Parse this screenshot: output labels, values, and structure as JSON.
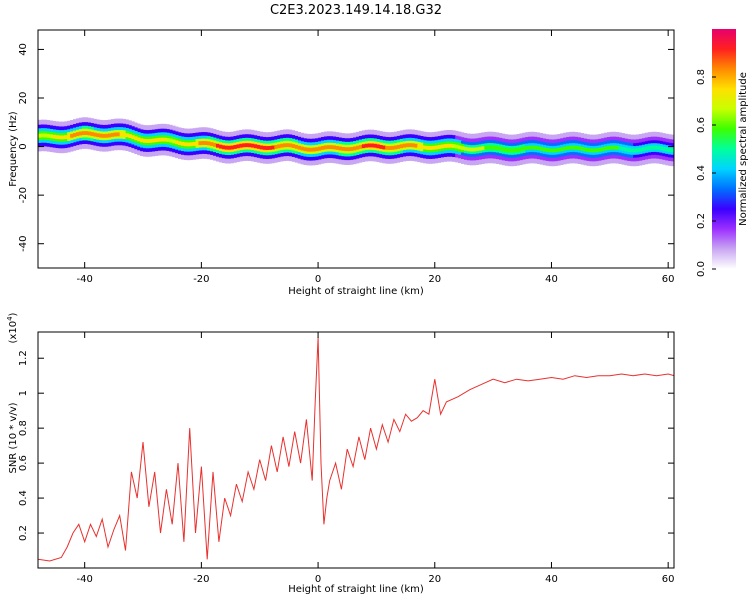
{
  "figure": {
    "title": "C2E3.2023.149.14.18.G32"
  },
  "chart_data": [
    {
      "type": "heatmap",
      "xlabel": "Height of straight line (km)",
      "ylabel": "Frequency (Hz)",
      "xlim": [
        -48,
        61
      ],
      "ylim": [
        -50,
        48
      ],
      "xticks": [
        -40,
        -20,
        0,
        20,
        40,
        60
      ],
      "yticks": [
        -40,
        -20,
        0,
        20,
        40
      ],
      "colorbar": {
        "label": "Normalized spectral amplitude",
        "range": [
          0.0,
          1.0
        ],
        "ticks": [
          0.0,
          0.2,
          0.4,
          0.6,
          0.8
        ],
        "colors": [
          "#ffffff",
          "#c9a6f2",
          "#9b30ff",
          "#3a00ff",
          "#0070ff",
          "#00d4ff",
          "#00ff9c",
          "#3cff00",
          "#c8ff00",
          "#ffe000",
          "#ff8a00",
          "#ff2020",
          "#e8006e"
        ]
      },
      "ridge": {
        "description_points_x": [
          -46,
          -40,
          -35,
          -30,
          -25,
          -20,
          -15,
          -10,
          -5,
          0,
          10,
          20,
          30,
          40,
          50,
          60
        ],
        "frequency_center": [
          4,
          5,
          5,
          3,
          2,
          1,
          0,
          0,
          0,
          -1,
          0,
          0,
          -1,
          -1,
          -1,
          -1
        ],
        "amplitude": [
          0.7,
          0.85,
          0.8,
          0.75,
          0.7,
          0.8,
          0.95,
          0.9,
          0.85,
          0.8,
          0.9,
          0.75,
          0.6,
          0.55,
          0.55,
          0.5
        ]
      },
      "grid": false
    },
    {
      "type": "line",
      "xlabel": "Height of straight line (km)",
      "ylabel": "SNR (10 * v/v)",
      "y_multiplier_label": "(x10",
      "y_multiplier_exponent": "4",
      "y_multiplier_close": ")",
      "xlim": [
        -48,
        61
      ],
      "ylim": [
        0.0,
        1.35
      ],
      "xticks": [
        -40,
        -20,
        0,
        20,
        40,
        60
      ],
      "yticks": [
        0.2,
        0.4,
        0.6,
        0.8,
        1.0,
        1.2
      ],
      "series": [
        {
          "color": "#e8312e",
          "x": [
            -48,
            -46,
            -44,
            -43,
            -42,
            -41,
            -40,
            -39,
            -38,
            -37,
            -36,
            -35,
            -34,
            -33,
            -32,
            -31,
            -30,
            -29,
            -28,
            -27,
            -26,
            -25,
            -24,
            -23,
            -22,
            -21,
            -20,
            -19,
            -18,
            -17,
            -16,
            -15,
            -14,
            -13,
            -12,
            -11,
            -10,
            -9,
            -8,
            -7,
            -6,
            -5,
            -4,
            -3,
            -2,
            -1,
            -0.5,
            0,
            0.5,
            1,
            1.5,
            2,
            3,
            4,
            5,
            6,
            7,
            8,
            9,
            10,
            11,
            12,
            13,
            14,
            15,
            16,
            17,
            18,
            19,
            20,
            21,
            22,
            24,
            26,
            28,
            30,
            32,
            34,
            36,
            38,
            40,
            42,
            44,
            46,
            48,
            50,
            52,
            54,
            56,
            58,
            60,
            61
          ],
          "y": [
            0.05,
            0.04,
            0.06,
            0.12,
            0.2,
            0.25,
            0.15,
            0.25,
            0.18,
            0.28,
            0.12,
            0.22,
            0.3,
            0.1,
            0.55,
            0.4,
            0.72,
            0.35,
            0.55,
            0.2,
            0.45,
            0.25,
            0.6,
            0.15,
            0.8,
            0.2,
            0.58,
            0.05,
            0.55,
            0.15,
            0.4,
            0.3,
            0.48,
            0.38,
            0.55,
            0.45,
            0.62,
            0.5,
            0.7,
            0.55,
            0.75,
            0.58,
            0.78,
            0.6,
            0.85,
            0.5,
            0.95,
            1.32,
            0.6,
            0.25,
            0.4,
            0.5,
            0.6,
            0.45,
            0.68,
            0.58,
            0.75,
            0.62,
            0.8,
            0.68,
            0.82,
            0.72,
            0.85,
            0.78,
            0.88,
            0.84,
            0.86,
            0.9,
            0.88,
            1.08,
            0.88,
            0.95,
            0.98,
            1.02,
            1.05,
            1.08,
            1.06,
            1.08,
            1.07,
            1.08,
            1.09,
            1.08,
            1.1,
            1.09,
            1.1,
            1.1,
            1.11,
            1.1,
            1.11,
            1.1,
            1.11,
            1.1
          ]
        }
      ],
      "grid": false
    }
  ]
}
